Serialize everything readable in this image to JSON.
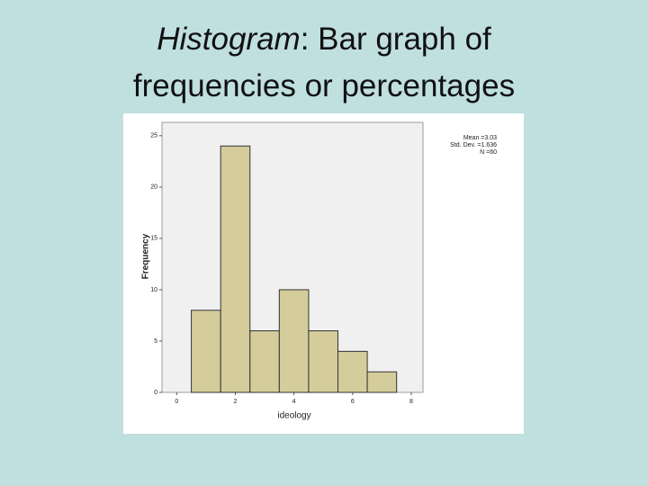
{
  "slide": {
    "title_emphasis": "Histogram",
    "title_rest": ": Bar graph of frequencies or percentages"
  },
  "chart_data": {
    "type": "histogram",
    "bins": [
      0.5,
      1.5,
      2.5,
      3.5,
      4.5,
      5.5,
      6.5,
      7.5
    ],
    "values": [
      8,
      24,
      6,
      10,
      6,
      4,
      2
    ],
    "color": "#d4cd9b",
    "xlabel": "ideology",
    "ylabel": "Frequency",
    "xlim": [
      -0.5,
      8.4
    ],
    "xticks": [
      0,
      2,
      4,
      6,
      8
    ],
    "ylim": [
      0,
      26.3
    ],
    "yticks": [
      0,
      5,
      10,
      15,
      20,
      25
    ],
    "annotations": [
      "Mean =3.03",
      "Std. Dev. =1.636",
      "N =60"
    ]
  }
}
